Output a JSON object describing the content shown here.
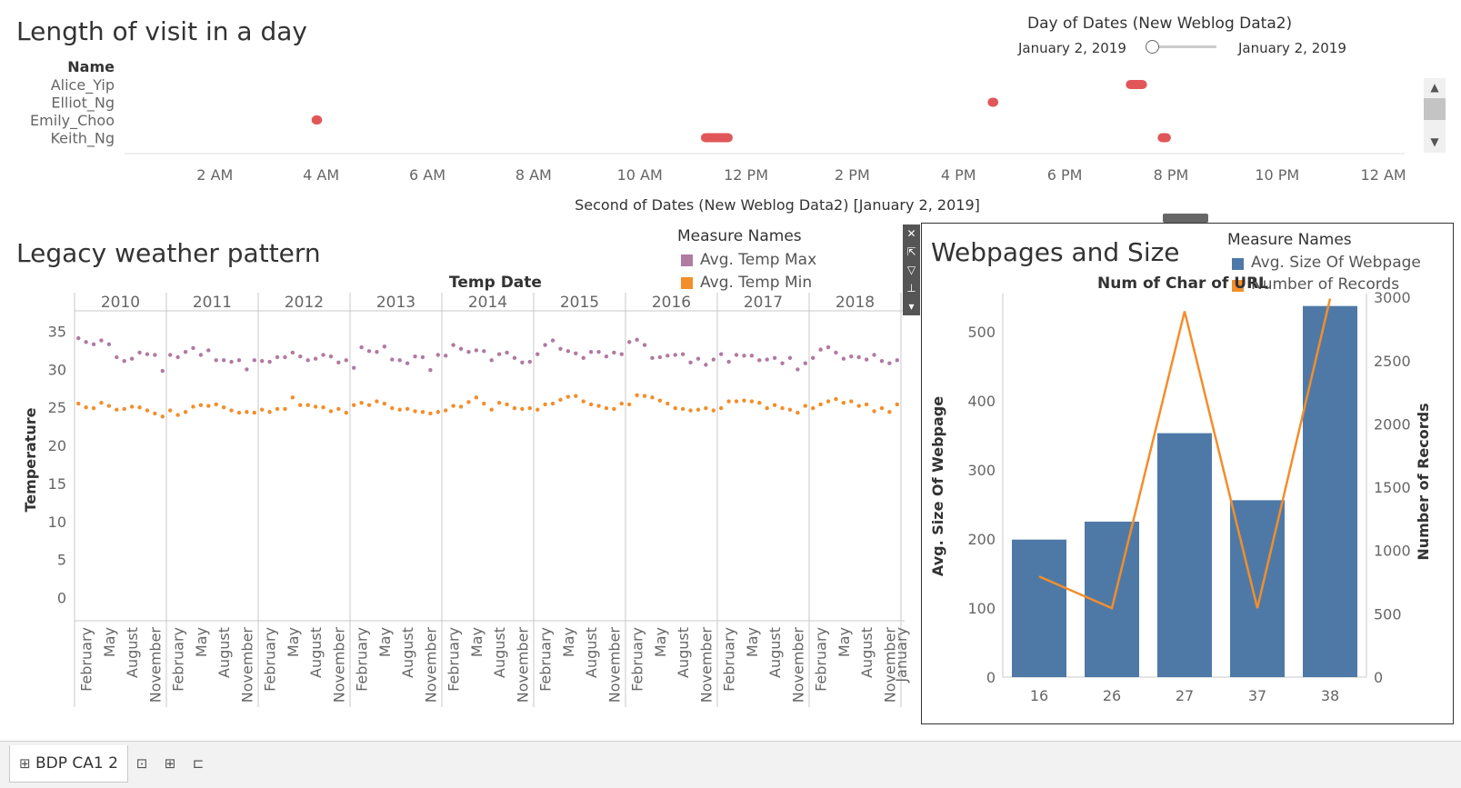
{
  "visit_panel": {
    "title": "Length of visit in a day",
    "name_header": "Name",
    "names": [
      "Alice_Yip",
      "Elliot_Ng",
      "Emily_Choo",
      "Keith_Ng"
    ],
    "x_ticks": [
      "2 AM",
      "4 AM",
      "6 AM",
      "8 AM",
      "10 AM",
      "12 PM",
      "2 PM",
      "4 PM",
      "6 PM",
      "8 PM",
      "10 PM",
      "12 AM"
    ],
    "x_axis_title": "Second of Dates (New Weblog Data2) [January 2, 2019]",
    "filter": {
      "title": "Day of Dates (New Weblog Data2)",
      "start": "January 2, 2019",
      "end": "January 2, 2019"
    },
    "scroll_up_icon": "chevron-up-icon",
    "scroll_down_icon": "chevron-down-icon"
  },
  "weather_panel": {
    "title": "Legacy weather pattern",
    "column_header": "Temp Date",
    "legend_title": "Measure Names",
    "legend": [
      {
        "label": "Avg. Temp Max",
        "color": "#b07aa1"
      },
      {
        "label": "Avg. Temp Min",
        "color": "#f28e2b"
      }
    ],
    "y_axis_title": "Temperature",
    "y_ticks": [
      "35",
      "30",
      "25",
      "20",
      "15",
      "10",
      "5",
      "0"
    ],
    "years": [
      "2010",
      "2011",
      "2012",
      "2013",
      "2014",
      "2015",
      "2016",
      "2017",
      "2018"
    ],
    "month_labels": [
      "February",
      "May",
      "August",
      "November"
    ],
    "trailing_label": "January"
  },
  "webpage_panel": {
    "title": "Webpages and Size",
    "column_header": "Num of Char of URL",
    "legend_title": "Measure Names",
    "legend": [
      {
        "label": "Avg. Size Of Webpage",
        "color": "#4e79a7"
      },
      {
        "label": "Number of Records",
        "color": "#f28e2b"
      }
    ],
    "left_axis_title": "Avg. Size Of Webpage",
    "right_axis_title": "Number of Records",
    "left_ticks": [
      "500",
      "400",
      "300",
      "200",
      "100",
      "0"
    ],
    "right_ticks": [
      "3000",
      "2500",
      "2000",
      "1500",
      "1000",
      "500",
      "0"
    ],
    "toolbar_icons": [
      "close-icon",
      "popout-icon",
      "filter-icon",
      "pin-icon",
      "menu-icon"
    ]
  },
  "bottom": {
    "sheet_tab": "BDP CA1 2",
    "tab_icons": [
      "new-worksheet-icon",
      "new-dashboard-icon",
      "new-story-icon"
    ]
  },
  "chart_data": [
    {
      "type": "gantt",
      "title": "Length of visit in a day",
      "xlabel": "Second of Dates (New Weblog Data2) [January 2, 2019]",
      "ylabel": "Name",
      "categories": [
        "Alice_Yip",
        "Elliot_Ng",
        "Emily_Choo",
        "Keith_Ng"
      ],
      "x_range_hours": [
        0.3,
        24.4
      ],
      "color": "#e15759",
      "segments": [
        {
          "name": "Alice_Yip",
          "start": 19.15,
          "end": 19.55
        },
        {
          "name": "Elliot_Ng",
          "start": 16.55,
          "end": 16.75
        },
        {
          "name": "Emily_Choo",
          "start": 3.82,
          "end": 4.02
        },
        {
          "name": "Keith_Ng",
          "start": 11.15,
          "end": 11.75
        },
        {
          "name": "Keith_Ng",
          "start": 19.75,
          "end": 20.0
        }
      ]
    },
    {
      "type": "scatter",
      "title": "Legacy weather pattern",
      "ylabel": "Temperature",
      "ylim": [
        -1.5,
        36.5
      ],
      "x_unit": "month",
      "x_start": "2010-01",
      "series": [
        {
          "name": "Avg. Temp Max",
          "values": [
            34.1,
            33.6,
            33.3,
            33.8,
            33.3,
            31.6,
            31.1,
            31.4,
            32.2,
            32.0,
            31.9,
            29.8,
            31.9,
            31.6,
            32.3,
            32.8,
            31.9,
            32.5,
            31.2,
            31.2,
            31.0,
            31.2,
            30.0,
            31.2,
            31.1,
            31.0,
            31.6,
            31.6,
            32.2,
            31.7,
            31.2,
            31.4,
            31.9,
            31.7,
            30.9,
            31.2,
            30.2,
            32.9,
            32.4,
            32.3,
            33.0,
            31.3,
            31.2,
            30.8,
            31.7,
            31.6,
            29.9,
            31.9,
            31.8,
            33.2,
            32.7,
            32.3,
            32.5,
            32.4,
            31.2,
            32.0,
            32.2,
            31.5,
            30.9,
            31.0,
            32.0,
            33.2,
            33.8,
            32.7,
            32.4,
            32.1,
            31.5,
            32.3,
            32.3,
            31.7,
            32.2,
            32.0,
            33.6,
            33.9,
            33.2,
            31.5,
            31.6,
            31.8,
            31.9,
            32.0,
            30.9,
            31.4,
            30.6,
            31.3,
            32.0,
            31.0,
            31.9,
            31.8,
            31.8,
            31.2,
            31.3,
            31.5,
            30.8,
            31.5,
            30.0,
            30.8,
            31.5,
            32.6,
            32.9,
            32.2,
            31.4,
            31.7,
            31.6,
            31.3,
            31.9,
            31.1,
            30.8,
            31.2,
            33.2
          ]
        },
        {
          "name": "Avg. Temp Min",
          "values": [
            25.5,
            25.0,
            24.9,
            25.6,
            25.2,
            24.7,
            24.8,
            25.1,
            25.0,
            24.6,
            24.2,
            23.8,
            24.6,
            24.0,
            24.4,
            25.1,
            25.3,
            25.2,
            25.4,
            25.0,
            24.6,
            24.3,
            24.4,
            24.3,
            24.7,
            24.4,
            24.8,
            24.8,
            26.3,
            25.3,
            25.3,
            25.1,
            25.0,
            24.5,
            24.8,
            24.3,
            25.3,
            25.6,
            25.3,
            25.8,
            25.5,
            24.9,
            24.7,
            24.8,
            24.5,
            24.4,
            24.2,
            24.4,
            24.6,
            25.2,
            25.1,
            25.7,
            26.3,
            25.5,
            24.7,
            25.6,
            25.4,
            24.9,
            24.8,
            24.9,
            24.7,
            25.4,
            25.5,
            26.0,
            26.4,
            26.5,
            25.8,
            25.4,
            25.2,
            24.9,
            24.8,
            25.5,
            25.4,
            26.6,
            26.5,
            26.3,
            25.9,
            25.5,
            24.9,
            24.8,
            24.6,
            24.7,
            24.9,
            24.6,
            24.9,
            25.8,
            25.8,
            25.9,
            25.8,
            25.6,
            24.9,
            25.3,
            24.9,
            24.7,
            24.3,
            25.2,
            24.9,
            25.4,
            25.8,
            26.1,
            25.6,
            25.8,
            25.2,
            25.4,
            24.5,
            24.9,
            24.4,
            25.4,
            25.4
          ]
        }
      ]
    },
    {
      "type": "bar",
      "title": "Webpages and Size",
      "xlabel": "Num of Char of URL",
      "categories": [
        "16",
        "26",
        "27",
        "37",
        "38"
      ],
      "series": [
        {
          "name": "Avg. Size Of Webpage",
          "type": "bar",
          "axis": "left",
          "values": [
            199,
            225,
            353,
            256,
            537
          ]
        },
        {
          "name": "Number of Records",
          "type": "line",
          "axis": "right",
          "values": [
            795,
            545,
            2890,
            545,
            2990
          ]
        }
      ],
      "ylim_left": [
        0,
        555
      ],
      "ylim_right": [
        0,
        3030
      ]
    }
  ]
}
